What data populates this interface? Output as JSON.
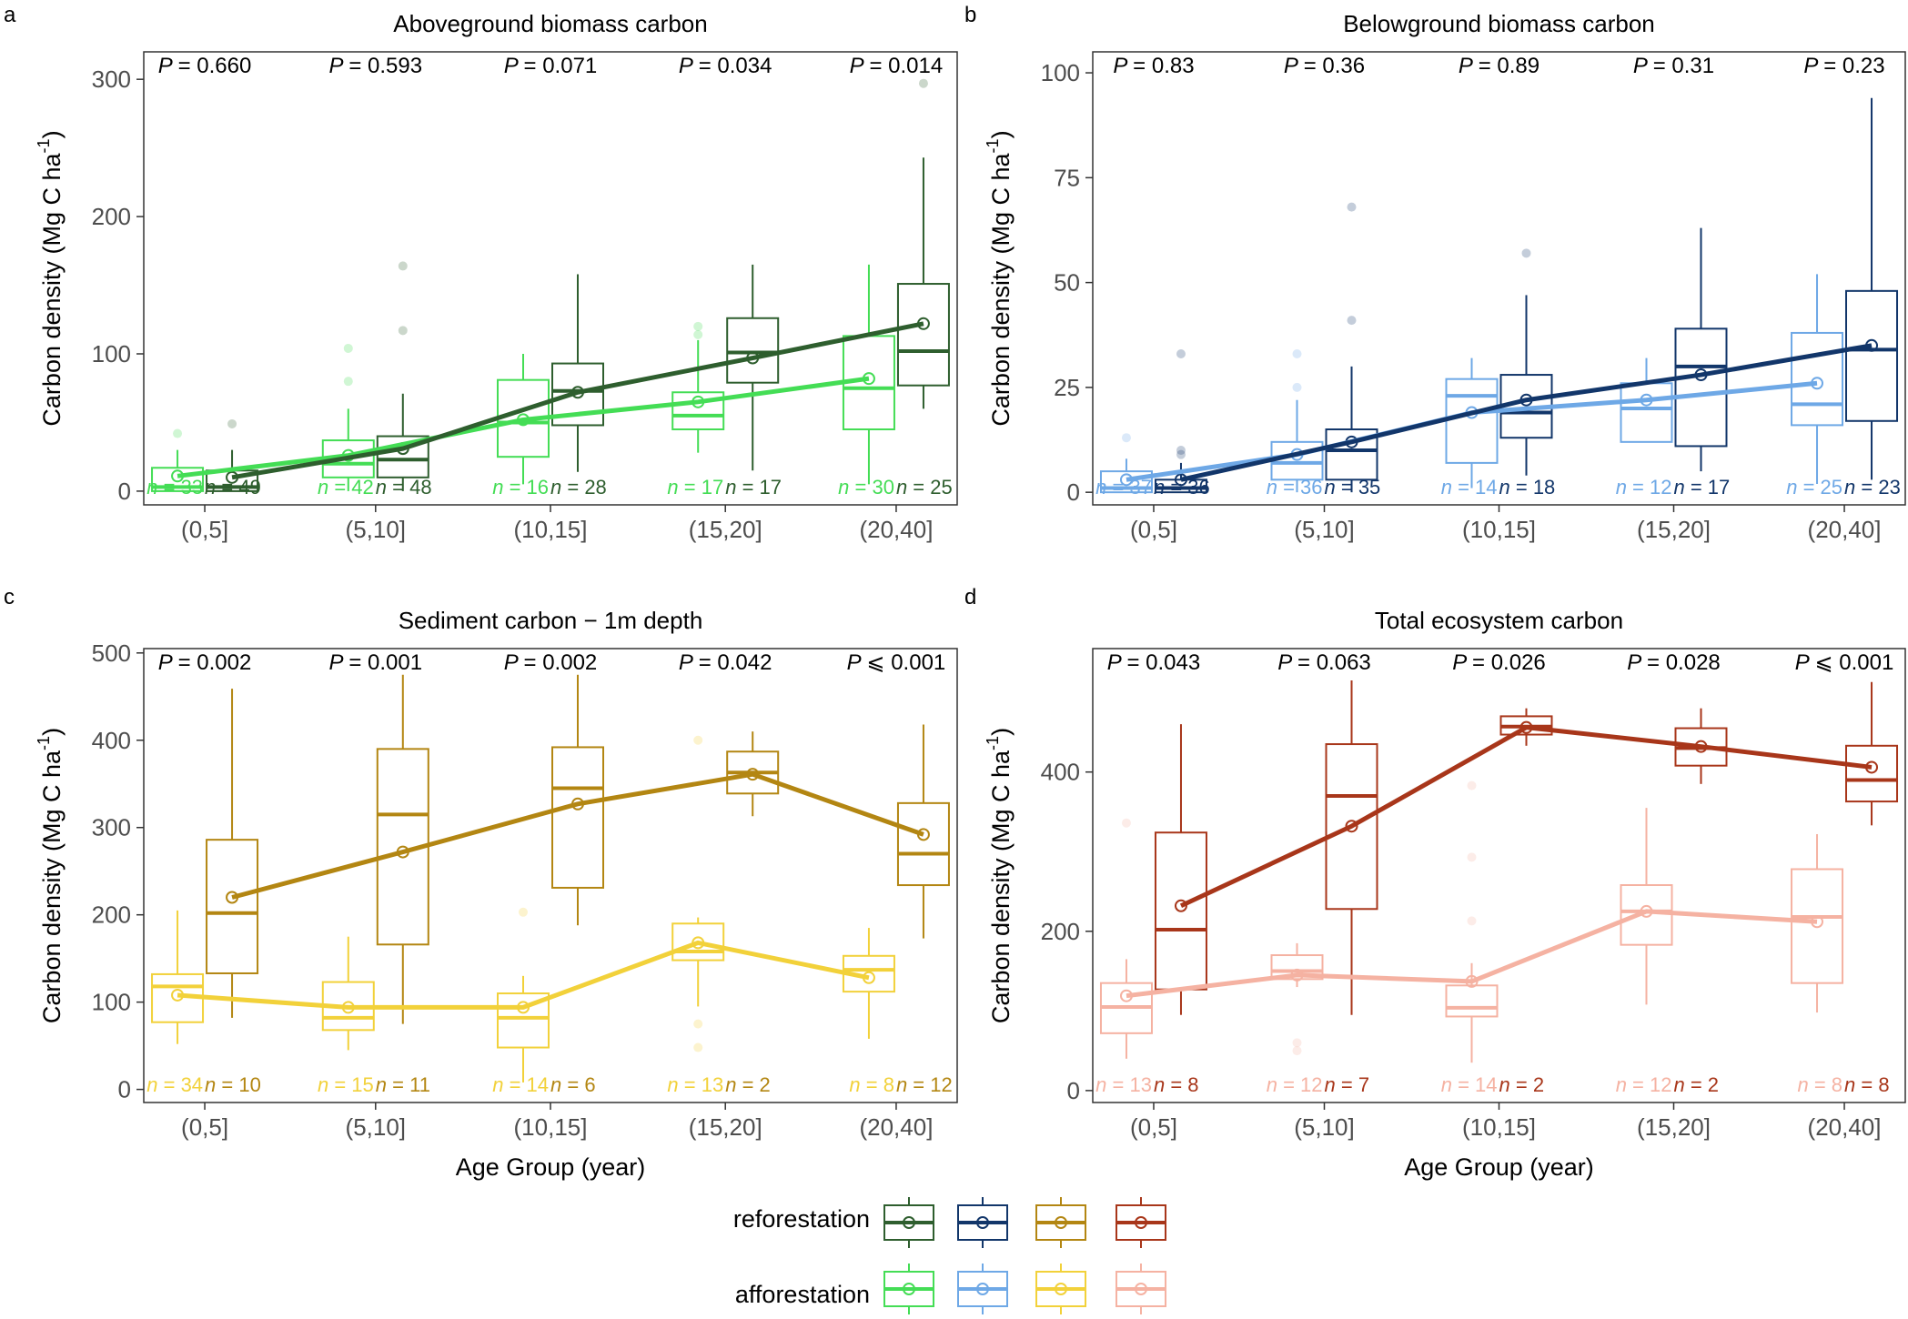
{
  "xlabel": "Age Group (year)",
  "ylabel": "Carbon density (Mg C ha",
  "ylabel_sup": "-1",
  "ylabel_close": ")",
  "p_prefix": "P",
  "n_prefix": "n",
  "categories": [
    "(0,5]",
    "(5,10]",
    "(10,15]",
    "(15,20]",
    "(20,40]"
  ],
  "legend": {
    "reforestation_label": "reforestation",
    "afforestation_label": "afforestation",
    "reforestation_colors": [
      "#2e5e2e",
      "#12366a",
      "#b38612",
      "#a8361a"
    ],
    "afforestation_colors": [
      "#44dd55",
      "#6ea8e6",
      "#f2d13a",
      "#f5b2a2"
    ]
  },
  "chart_data": [
    {
      "panel": "a",
      "type": "box",
      "title": "Aboveground biomass carbon",
      "ylim": [
        -10,
        320
      ],
      "yticks": [
        0,
        100,
        200,
        300
      ],
      "p_values": [
        "= 0.660",
        "= 0.593",
        "= 0.071",
        "= 0.034",
        "= 0.014"
      ],
      "afforestation": {
        "color": "#44dd55",
        "n": [
          33,
          42,
          16,
          17,
          30
        ],
        "q1": [
          0,
          10,
          25,
          45,
          45
        ],
        "median": [
          3,
          20,
          50,
          55,
          75
        ],
        "q3": [
          17,
          37,
          81,
          72,
          113
        ],
        "whisker_low": [
          0,
          0,
          5,
          28,
          5
        ],
        "whisker_high": [
          30,
          60,
          100,
          110,
          165
        ],
        "mean": [
          11,
          26,
          52,
          65,
          82
        ],
        "outliers": [
          [
            42
          ],
          [
            104,
            80
          ],
          [],
          [
            120,
            114
          ],
          []
        ]
      },
      "reforestation": {
        "color": "#2e5e2e",
        "n": [
          49,
          48,
          28,
          17,
          25
        ],
        "q1": [
          0,
          10,
          48,
          79,
          77
        ],
        "median": [
          3,
          23,
          73,
          101,
          102
        ],
        "q3": [
          15,
          40,
          93,
          126,
          151
        ],
        "whisker_low": [
          0,
          0,
          14,
          15,
          60
        ],
        "whisker_high": [
          30,
          71,
          158,
          165,
          243
        ],
        "mean": [
          10,
          31,
          72,
          97,
          122
        ],
        "outliers": [
          [
            49
          ],
          [
            164,
            117
          ],
          [],
          [],
          [
            297
          ]
        ]
      }
    },
    {
      "panel": "b",
      "type": "box",
      "title": "Belowground biomass carbon",
      "ylim": [
        -3,
        105
      ],
      "yticks": [
        0,
        25,
        50,
        75,
        100
      ],
      "p_values": [
        "= 0.83",
        "= 0.36",
        "= 0.89",
        "= 0.31",
        "= 0.23"
      ],
      "afforestation": {
        "color": "#6ea8e6",
        "n": [
          37,
          36,
          14,
          12,
          25
        ],
        "q1": [
          0,
          3,
          7,
          12,
          16
        ],
        "median": [
          1,
          7,
          23,
          20,
          21
        ],
        "q3": [
          5,
          12,
          27,
          26,
          38
        ],
        "whisker_low": [
          0,
          0,
          1,
          12,
          2
        ],
        "whisker_high": [
          8,
          22,
          32,
          32,
          52
        ],
        "mean": [
          3,
          9,
          19,
          22,
          26
        ],
        "outliers": [
          [
            13
          ],
          [
            33,
            25
          ],
          [],
          [],
          []
        ]
      },
      "reforestation": {
        "color": "#12366a",
        "n": [
          36,
          35,
          18,
          17,
          23
        ],
        "q1": [
          0,
          3,
          13,
          11,
          17
        ],
        "median": [
          1,
          10,
          19,
          30,
          34
        ],
        "q3": [
          3,
          15,
          28,
          39,
          48
        ],
        "whisker_low": [
          0,
          0,
          4,
          5,
          3
        ],
        "whisker_high": [
          7,
          30,
          47,
          63,
          94
        ],
        "mean": [
          3,
          12,
          22,
          28,
          35
        ],
        "outliers": [
          [
            33,
            10,
            9
          ],
          [
            68,
            41
          ],
          [
            57
          ],
          [],
          []
        ]
      }
    },
    {
      "panel": "c",
      "type": "box",
      "title": "Sediment carbon − 1m depth",
      "ylim": [
        -15,
        505
      ],
      "yticks": [
        0,
        100,
        200,
        300,
        400,
        500
      ],
      "p_values": [
        "= 0.002",
        "= 0.001",
        "= 0.002",
        "= 0.042",
        "⩽ 0.001"
      ],
      "afforestation": {
        "color": "#f2d13a",
        "n": [
          34,
          15,
          14,
          13,
          8
        ],
        "q1": [
          77,
          68,
          48,
          148,
          112
        ],
        "median": [
          118,
          82,
          82,
          158,
          137
        ],
        "q3": [
          132,
          123,
          110,
          190,
          153
        ],
        "whisker_low": [
          52,
          45,
          8,
          95,
          58
        ],
        "whisker_high": [
          205,
          175,
          130,
          197,
          185
        ],
        "mean": [
          108,
          94,
          94,
          168,
          128
        ],
        "outliers": [
          [],
          [],
          [
            203
          ],
          [
            400,
            75,
            48
          ],
          []
        ]
      },
      "reforestation": {
        "color": "#b38612",
        "n": [
          10,
          11,
          6,
          2,
          12
        ],
        "q1": [
          133,
          166,
          231,
          339,
          234
        ],
        "median": [
          202,
          315,
          345,
          363,
          270
        ],
        "q3": [
          286,
          390,
          392,
          387,
          328
        ],
        "whisker_low": [
          82,
          75,
          188,
          313,
          173
        ],
        "whisker_high": [
          459,
          475,
          475,
          410,
          418
        ],
        "mean": [
          220,
          272,
          327,
          361,
          292
        ],
        "outliers": [
          [],
          [],
          [],
          [],
          []
        ]
      }
    },
    {
      "panel": "d",
      "type": "box",
      "title": "Total ecosystem carbon",
      "ylim": [
        -15,
        555
      ],
      "yticks": [
        0,
        200,
        400
      ],
      "p_values": [
        "= 0.043",
        "= 0.063",
        "= 0.026",
        "= 0.028",
        "⩽ 0.001"
      ],
      "afforestation": {
        "color": "#f5b2a2",
        "n": [
          13,
          12,
          14,
          12,
          8
        ],
        "q1": [
          72,
          140,
          93,
          183,
          135
        ],
        "median": [
          105,
          150,
          104,
          225,
          218
        ],
        "q3": [
          135,
          170,
          132,
          258,
          278
        ],
        "whisker_low": [
          40,
          130,
          35,
          108,
          98
        ],
        "whisker_high": [
          165,
          185,
          160,
          355,
          322
        ],
        "mean": [
          119,
          145,
          137,
          225,
          212
        ],
        "outliers": [
          [
            336
          ],
          [
            60,
            50
          ],
          [
            383,
            293,
            213
          ],
          [],
          []
        ]
      },
      "reforestation": {
        "color": "#a8361a",
        "n": [
          8,
          7,
          2,
          2,
          8
        ],
        "q1": [
          127,
          228,
          447,
          408,
          363
        ],
        "median": [
          202,
          370,
          457,
          430,
          390
        ],
        "q3": [
          324,
          435,
          470,
          455,
          433
        ],
        "whisker_low": [
          95,
          95,
          433,
          385,
          333
        ],
        "whisker_high": [
          460,
          515,
          480,
          480,
          513
        ],
        "mean": [
          232,
          332,
          456,
          432,
          406
        ],
        "outliers": [
          [],
          [],
          [],
          [],
          []
        ]
      }
    }
  ]
}
